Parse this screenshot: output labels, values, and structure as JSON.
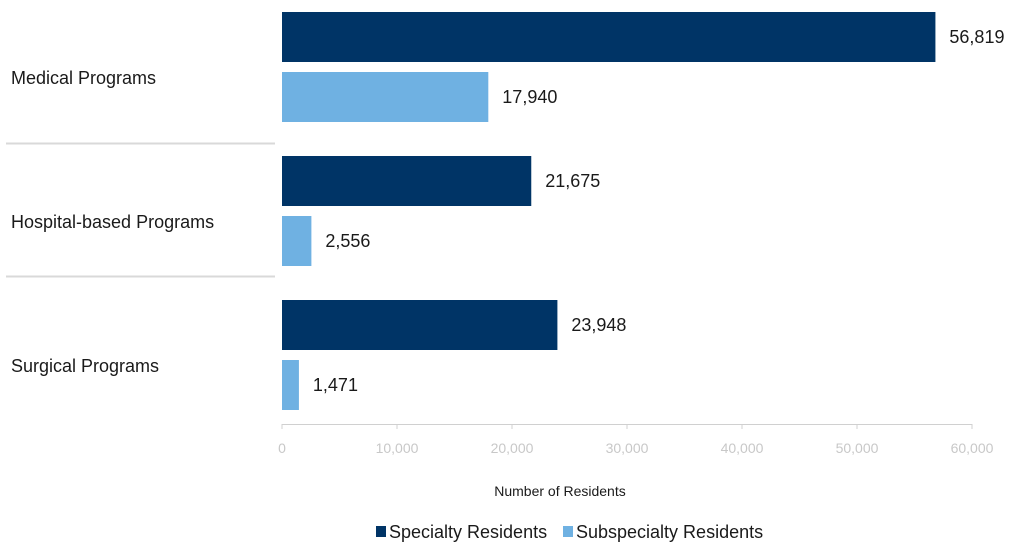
{
  "chart_data": {
    "type": "bar",
    "orientation": "horizontal",
    "categories": [
      "Medical Programs",
      "Hospital-based Programs",
      "Surgical Programs"
    ],
    "series": [
      {
        "name": "Specialty Residents",
        "values": [
          56819,
          21675,
          23948
        ],
        "labels": [
          "56,819",
          "21,675",
          "23,948"
        ],
        "color": "#003466"
      },
      {
        "name": "Subspecialty Residents",
        "values": [
          17940,
          2556,
          1471
        ],
        "labels": [
          "17,940",
          "2,556",
          "1,471"
        ],
        "color": "#6fb1e2"
      }
    ],
    "xlabel": "Number of Residents",
    "xlim": [
      0,
      60000
    ],
    "xticks": [
      0,
      10000,
      20000,
      30000,
      40000,
      50000,
      60000
    ],
    "xtick_labels": [
      "0",
      "10,000",
      "20,000",
      "30,000",
      "40,000",
      "50,000",
      "60,000"
    ],
    "legend_position": "bottom",
    "grid": false
  }
}
